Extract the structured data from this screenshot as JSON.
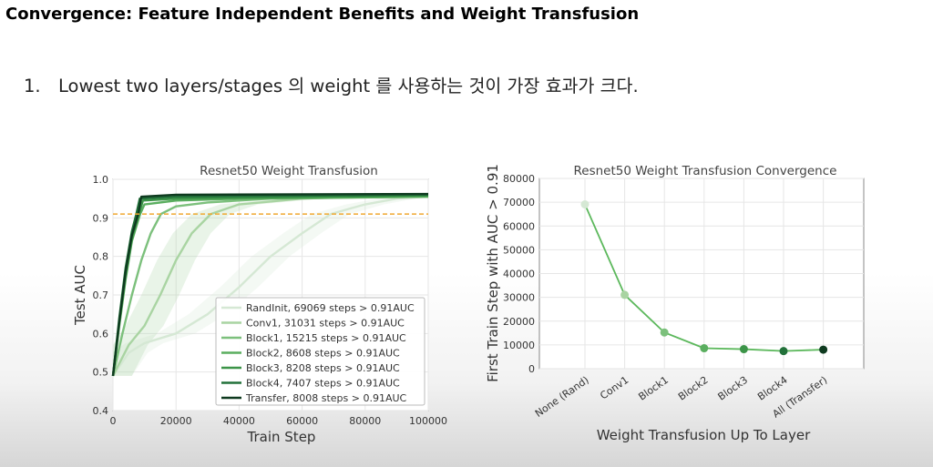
{
  "slide": {
    "title": "Convergence: Feature Independent Benefits and Weight Transfusion",
    "bullet_number": "1.",
    "bullet_text": "Lowest two layers/stages 의 weight 를 사용하는 것이 가장 효과가 크다."
  },
  "chart_data": [
    {
      "type": "line",
      "title": "Resnet50 Weight Transfusion",
      "xlabel": "Train Step",
      "ylabel": "Test AUC",
      "xlim": [
        0,
        100000
      ],
      "ylim": [
        0.4,
        1.0
      ],
      "xticks": [
        0,
        20000,
        40000,
        60000,
        80000,
        100000
      ],
      "xtick_labels": [
        "0",
        "20000",
        "40000",
        "60000",
        "80000",
        "100000"
      ],
      "yticks": [
        0.4,
        0.5,
        0.6,
        0.7,
        0.8,
        0.9,
        1.0
      ],
      "ytick_labels": [
        "0.4",
        "0.5",
        "0.6",
        "0.7",
        "0.8",
        "0.9",
        "1.0"
      ],
      "threshold": 0.91,
      "threshold_color": "#f0a830",
      "legend_position": "lower right",
      "grid": true,
      "series": [
        {
          "name": "RandInit, 69069 steps > 0.91AUC",
          "color": "#d5e8d4",
          "points": [
            [
              0,
              0.49
            ],
            [
              5000,
              0.55
            ],
            [
              10000,
              0.575
            ],
            [
              20000,
              0.6
            ],
            [
              30000,
              0.65
            ],
            [
              40000,
              0.72
            ],
            [
              50000,
              0.8
            ],
            [
              60000,
              0.86
            ],
            [
              69069,
              0.91
            ],
            [
              80000,
              0.935
            ],
            [
              90000,
              0.95
            ],
            [
              100000,
              0.955
            ]
          ]
        },
        {
          "name": "Conv1, 31031 steps > 0.91AUC",
          "color": "#a9d4a2",
          "points": [
            [
              0,
              0.49
            ],
            [
              5000,
              0.57
            ],
            [
              10000,
              0.62
            ],
            [
              15000,
              0.7
            ],
            [
              20000,
              0.79
            ],
            [
              25000,
              0.86
            ],
            [
              31031,
              0.91
            ],
            [
              40000,
              0.935
            ],
            [
              60000,
              0.95
            ],
            [
              80000,
              0.955
            ],
            [
              100000,
              0.958
            ]
          ]
        },
        {
          "name": "Block1, 15215 steps > 0.91AUC",
          "color": "#7cc07c",
          "points": [
            [
              0,
              0.49
            ],
            [
              3000,
              0.6
            ],
            [
              6000,
              0.7
            ],
            [
              9000,
              0.79
            ],
            [
              12000,
              0.86
            ],
            [
              15215,
              0.91
            ],
            [
              20000,
              0.93
            ],
            [
              30000,
              0.94
            ],
            [
              50000,
              0.95
            ],
            [
              100000,
              0.955
            ]
          ]
        },
        {
          "name": "Block2, 8608 steps > 0.91AUC",
          "color": "#5aae5f",
          "points": [
            [
              0,
              0.49
            ],
            [
              2000,
              0.62
            ],
            [
              4000,
              0.74
            ],
            [
              6000,
              0.84
            ],
            [
              8608,
              0.91
            ],
            [
              10000,
              0.935
            ],
            [
              20000,
              0.945
            ],
            [
              40000,
              0.95
            ],
            [
              100000,
              0.955
            ]
          ]
        },
        {
          "name": "Block3, 8208 steps > 0.91AUC",
          "color": "#3c9448",
          "points": [
            [
              0,
              0.49
            ],
            [
              2000,
              0.63
            ],
            [
              4000,
              0.75
            ],
            [
              6000,
              0.845
            ],
            [
              8208,
              0.91
            ],
            [
              9500,
              0.945
            ],
            [
              20000,
              0.95
            ],
            [
              100000,
              0.958
            ]
          ]
        },
        {
          "name": "Block4, 7407 steps > 0.91AUC",
          "color": "#22713a",
          "points": [
            [
              0,
              0.49
            ],
            [
              2000,
              0.64
            ],
            [
              4000,
              0.77
            ],
            [
              6000,
              0.865
            ],
            [
              7407,
              0.91
            ],
            [
              8500,
              0.95
            ],
            [
              20000,
              0.955
            ],
            [
              100000,
              0.96
            ]
          ]
        },
        {
          "name": "Transfer, 8008 steps > 0.91AUC",
          "color": "#0e3a1f",
          "points": [
            [
              0,
              0.49
            ],
            [
              2000,
              0.63
            ],
            [
              4000,
              0.76
            ],
            [
              6000,
              0.855
            ],
            [
              8008,
              0.91
            ],
            [
              9000,
              0.955
            ],
            [
              20000,
              0.96
            ],
            [
              100000,
              0.962
            ]
          ]
        }
      ]
    },
    {
      "type": "line",
      "title": "Resnet50 Weight Transfusion Convergence",
      "xlabel": "Weight Transfusion Up To Layer",
      "ylabel": "First Train Step with AUC > 0.91",
      "ylim": [
        0,
        80000
      ],
      "yticks": [
        0,
        10000,
        20000,
        30000,
        40000,
        50000,
        60000,
        70000,
        80000
      ],
      "ytick_labels": [
        "0",
        "10000",
        "20000",
        "30000",
        "40000",
        "50000",
        "60000",
        "70000",
        "80000"
      ],
      "categories": [
        "None (Rand)",
        "Conv1",
        "Block1",
        "Block2",
        "Block3",
        "Block4",
        "All (Transfer)"
      ],
      "values": [
        69069,
        31031,
        15215,
        8608,
        8208,
        7407,
        8008
      ],
      "point_colors": [
        "#d5e8d4",
        "#a9d4a2",
        "#7cc07c",
        "#5aae5f",
        "#3c9448",
        "#22713a",
        "#0e3a1f"
      ],
      "line_color": "#5cb85c",
      "grid": true
    }
  ]
}
